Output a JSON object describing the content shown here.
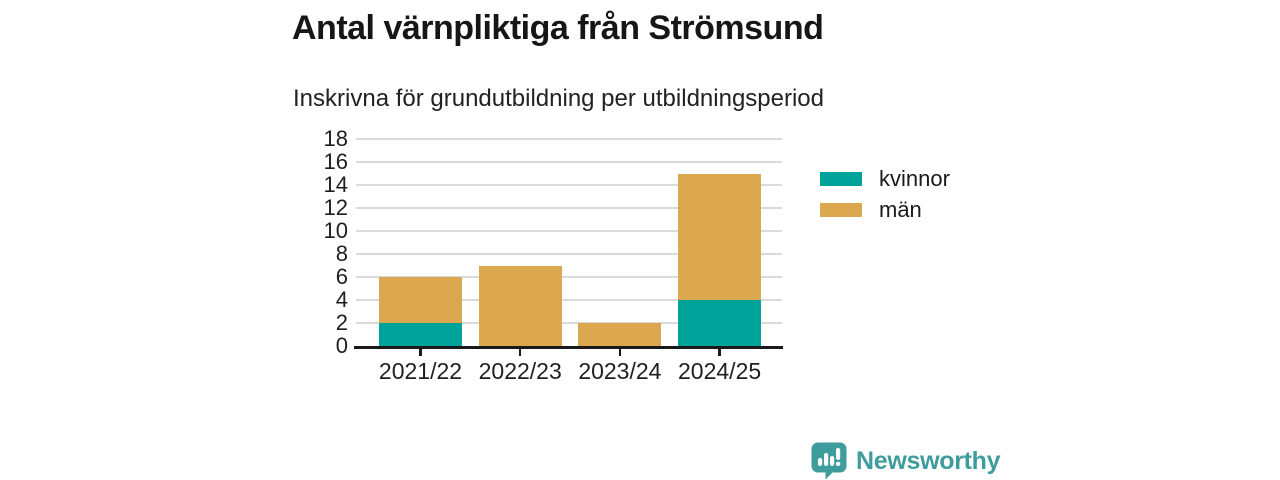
{
  "header": {
    "title": "Antal värnpliktiga från Strömsund",
    "subtitle": "Inskrivna för grundutbildning per utbildningsperiod"
  },
  "chart_data": {
    "type": "bar",
    "stacked": true,
    "title": "Antal värnpliktiga från Strömsund",
    "subtitle": "Inskrivna för grundutbildning per utbildningsperiod",
    "categories": [
      "2021/22",
      "2022/23",
      "2023/24",
      "2024/25"
    ],
    "series": [
      {
        "name": "kvinnor",
        "color": "#00A39A",
        "values": [
          2,
          0,
          0,
          4
        ]
      },
      {
        "name": "män",
        "color": "#DBA84F",
        "values": [
          4,
          7,
          2,
          11
        ]
      }
    ],
    "totals": [
      6,
      7,
      2,
      15
    ],
    "xlabel": "",
    "ylabel": "",
    "ylim": [
      0,
      18
    ],
    "ytick_step": 2,
    "yticks": [
      0,
      2,
      4,
      6,
      8,
      10,
      12,
      14,
      16,
      18
    ],
    "grid": true,
    "gridline_color": "#dadada",
    "axis_color": "#1a1a1a",
    "legend_position": "right"
  },
  "branding": {
    "logo_text": "Newsworthy",
    "logo_color": "#3F9C9D",
    "logo_icon": "bar-chart-speech-bubble-icon"
  }
}
